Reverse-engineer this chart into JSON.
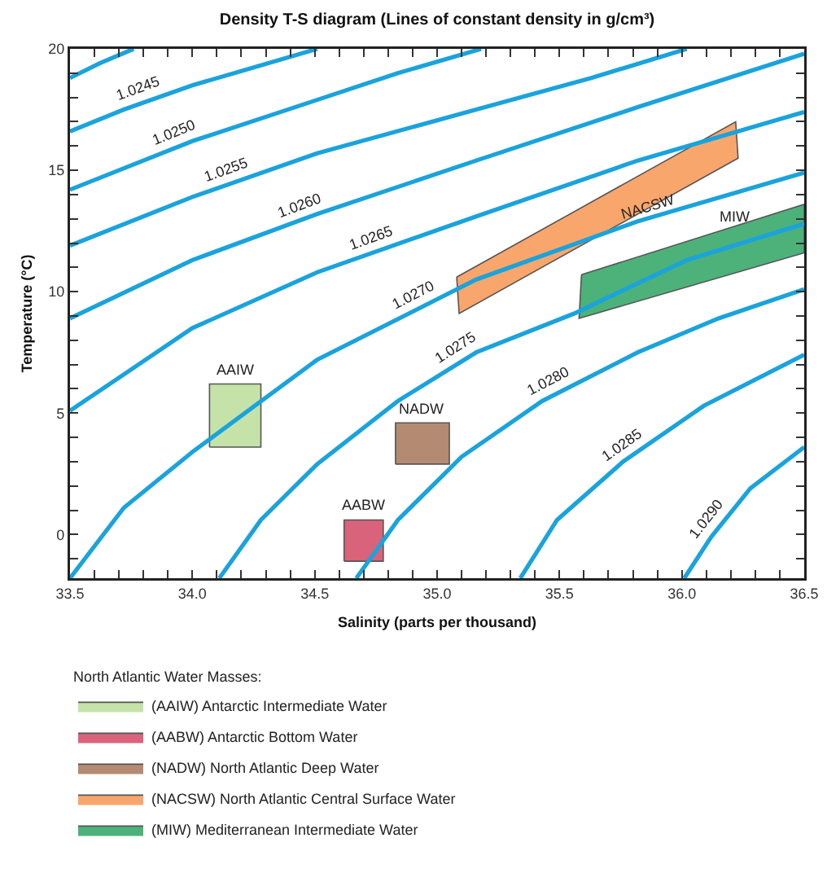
{
  "chart_data": {
    "type": "line",
    "title": "Density T-S diagram (Lines of constant density in g/cm³)",
    "xlabel": "Salinity (parts per thousand)",
    "ylabel": "Temperature (°C)",
    "legend_title": "North Atlantic Water Masses:",
    "legend": "bottom left",
    "grid": false,
    "marker": "none",
    "line_style": "solid",
    "xlim": [
      33.5,
      36.5
    ],
    "xticks": [
      33.5,
      {
        "value": 33.6,
        "label": null
      },
      {
        "value": 33.7,
        "label": null
      },
      {
        "value": 33.8,
        "label": null
      },
      {
        "value": 33.9,
        "label": null
      },
      {
        "value": 34,
        "label": "34.0"
      },
      {
        "value": 34.1,
        "label": null
      },
      {
        "value": 34.2,
        "label": null
      },
      {
        "value": 34.3,
        "label": null
      },
      {
        "value": 34.4,
        "label": null
      },
      34.5,
      {
        "value": 34.6,
        "label": null
      },
      {
        "value": 34.7,
        "label": null
      },
      {
        "value": 34.8,
        "label": null
      },
      {
        "value": 34.9,
        "label": null
      },
      {
        "value": 35,
        "label": "35.0"
      },
      {
        "value": 35.1,
        "label": null
      },
      {
        "value": 35.2,
        "label": null
      },
      {
        "value": 35.3,
        "label": null
      },
      {
        "value": 35.4,
        "label": null
      },
      35.5,
      {
        "value": 35.6,
        "label": null
      },
      {
        "value": 35.7,
        "label": null
      },
      {
        "value": 35.8,
        "label": null
      },
      {
        "value": 35.9,
        "label": null
      },
      {
        "value": 36,
        "label": "36.0"
      },
      {
        "value": 36.1,
        "label": null
      },
      {
        "value": 36.2,
        "label": null
      },
      {
        "value": 36.3,
        "label": null
      },
      {
        "value": 36.4,
        "label": null
      },
      36.5
    ],
    "ylim": [
      -1.8,
      20
    ],
    "yticks": [
      {
        "value": -1,
        "label": null
      },
      0,
      {
        "value": 1,
        "label": null
      },
      {
        "value": 2,
        "label": null
      },
      {
        "value": 3,
        "label": null
      },
      {
        "value": 4,
        "label": null
      },
      5,
      {
        "value": 6,
        "label": null
      },
      {
        "value": 7,
        "label": null
      },
      {
        "value": 8,
        "label": null
      },
      {
        "value": 9,
        "label": null
      },
      10,
      {
        "value": 11,
        "label": null
      },
      {
        "value": 12,
        "label": null
      },
      {
        "value": 13,
        "label": null
      },
      {
        "value": 14,
        "label": null
      },
      15,
      {
        "value": 16,
        "label": null
      },
      {
        "value": 17,
        "label": null
      },
      {
        "value": 18,
        "label": null
      },
      {
        "value": 19,
        "label": null
      },
      20
    ],
    "series": [
      {
        "color": "#1aa3dc",
        "x": [
          33.5,
          33.62,
          33.76
        ],
        "values": [
          18.8,
          19.4,
          20
        ]
      },
      {
        "color": "#1aa3dc",
        "x": [
          33.5,
          33.72,
          34.0,
          34.24,
          34.51
        ],
        "values": [
          16.6,
          17.5,
          18.5,
          19.2,
          20
        ]
      },
      {
        "color": "#1aa3dc",
        "x": [
          33.5,
          34.0,
          34.51,
          34.84,
          35.18
        ],
        "values": [
          14.2,
          16.2,
          17.9,
          19.0,
          20
        ]
      },
      {
        "color": "#1aa3dc",
        "x": [
          33.5,
          34.0,
          34.51,
          35.16,
          35.63,
          36.02
        ],
        "values": [
          11.9,
          13.9,
          15.7,
          17.5,
          18.8,
          20
        ]
      },
      {
        "color": "#1aa3dc",
        "x": [
          33.5,
          34.0,
          34.51,
          35.16,
          35.82,
          36.5
        ],
        "values": [
          8.9,
          11.3,
          13.2,
          15.4,
          17.6,
          19.8
        ]
      },
      {
        "color": "#1aa3dc",
        "x": [
          33.5,
          33.78,
          34.0,
          34.51,
          35.16,
          35.82,
          36.5
        ],
        "values": [
          5.1,
          7.0,
          8.5,
          10.8,
          13.1,
          15.4,
          17.4
        ]
      },
      {
        "color": "#1aa3dc",
        "x": [
          33.5,
          33.72,
          34.0,
          34.51,
          35.16,
          35.82,
          36.5
        ],
        "values": [
          -1.8,
          1.1,
          3.4,
          7.2,
          10.5,
          12.9,
          14.9
        ]
      },
      {
        "color": "#1aa3dc",
        "x": [
          34.11,
          34.28,
          34.51,
          34.84,
          35.16,
          35.56,
          36.02,
          36.5
        ],
        "values": [
          -1.8,
          0.6,
          2.9,
          5.5,
          7.5,
          9.1,
          11.3,
          12.8
        ]
      },
      {
        "color": "#1aa3dc",
        "x": [
          34.67,
          34.84,
          35.1,
          35.43,
          35.82,
          36.15,
          36.5
        ],
        "values": [
          -1.8,
          0.6,
          3.2,
          5.5,
          7.5,
          8.9,
          10.1
        ]
      },
      {
        "color": "#1aa3dc",
        "x": [
          35.34,
          35.49,
          35.76,
          36.09,
          36.5
        ],
        "values": [
          -1.8,
          0.6,
          3.0,
          5.3,
          7.4
        ]
      },
      {
        "color": "#1aa3dc",
        "x": [
          36.01,
          36.12,
          36.28,
          36.5
        ],
        "values": [
          -1.8,
          -0.1,
          1.9,
          3.6
        ]
      },
      {
        "type": "area",
        "name": "(AAIW) Antarctic Intermediate Water",
        "color": "#c5e3a8",
        "x": [
          34.07,
          34.28,
          34.28,
          34.07,
          34.07
        ],
        "values": [
          3.6,
          3.6,
          6.2,
          6.2,
          3.6
        ]
      },
      {
        "type": "area",
        "name": "(AABW) Antarctic Bottom Water",
        "color": "#d9637a",
        "x": [
          34.62,
          34.78,
          34.78,
          34.62,
          34.62
        ],
        "values": [
          -1.1,
          -1.1,
          0.6,
          0.6,
          -1.1
        ]
      },
      {
        "type": "area",
        "name": "(NADW) North Atlantic Deep Water",
        "color": "#b48a72",
        "x": [
          34.83,
          35.05,
          35.05,
          34.83,
          34.83
        ],
        "values": [
          2.9,
          2.9,
          4.6,
          4.6,
          2.9
        ]
      },
      {
        "type": "area",
        "name": "(NACSW) North Atlantic Central Surface Water",
        "color": "#f9a66c",
        "x": [
          35.08,
          36.22,
          36.23,
          35.09,
          35.08
        ],
        "values": [
          10.6,
          17.0,
          15.5,
          9.1,
          10.6
        ]
      },
      {
        "type": "area",
        "name": "(MIW) Mediterranean Intermediate Water",
        "color": "#4cb27a",
        "x": [
          35.59,
          36.5,
          36.5,
          35.58,
          35.59
        ],
        "values": [
          10.7,
          13.6,
          11.6,
          8.9,
          10.7
        ]
      }
    ],
    "annotations": [
      {
        "text": "1.0245",
        "x": 33.8,
        "y": 17.79
      },
      {
        "text": "1.0250",
        "x": 33.95,
        "y": 16.0
      },
      {
        "text": "1.0255",
        "x": 34.16,
        "y": 14.46
      },
      {
        "text": "1.0260",
        "x": 34.46,
        "y": 13.01
      },
      {
        "text": "1.0265",
        "x": 34.75,
        "y": 11.65
      },
      {
        "text": "1.0270",
        "x": 34.93,
        "y": 9.33
      },
      {
        "text": "1.0275",
        "x": 35.11,
        "y": 7.19
      },
      {
        "text": "1.0280",
        "x": 35.48,
        "y": 5.76
      },
      {
        "text": "1.0285",
        "x": 35.79,
        "y": 3.21
      },
      {
        "text": "1.0290",
        "x": 36.15,
        "y": 0.28
      },
      {
        "text": "AAIW",
        "x": 34.18,
        "y": 6.2
      },
      {
        "text": "NADW",
        "x": 34.94,
        "y": 4.6
      },
      {
        "text": "AABW",
        "x": 34.7,
        "y": 0.6
      },
      {
        "text": "NACSW",
        "x": 35.86,
        "y": 13.5
      },
      {
        "text": "MIW",
        "x": 36.22,
        "y": 12.5
      }
    ]
  }
}
